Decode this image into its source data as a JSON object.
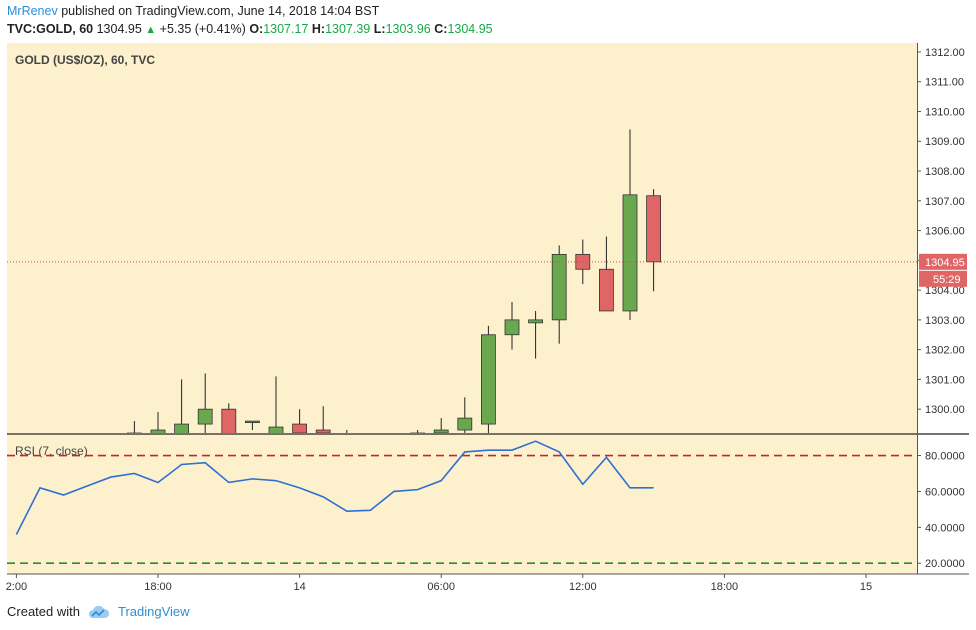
{
  "header": {
    "author": "MrRenev",
    "published_text": "published on TradingView.com, June 14, 2018 14:04 BST"
  },
  "ticker": {
    "symbol": "TVC:GOLD, 60",
    "last": "1304.95",
    "change": "+5.35 (+0.41%)",
    "open_label": "O:",
    "open": "1307.17",
    "high_label": "H:",
    "high": "1307.39",
    "low_label": "L:",
    "low": "1303.96",
    "close_label": "C:",
    "close": "1304.95"
  },
  "footer": {
    "created_with": "Created with",
    "brand": "TradingView"
  },
  "colors": {
    "pane_bg": "#fdf1cd",
    "up": "#6aa84f",
    "down": "#e06666",
    "rsi_line": "#2e6fd1",
    "rsi_upper": "#cc2222",
    "rsi_lower": "#2e8b2e",
    "price_line": "#c94b4b",
    "price_tag": "#e06666"
  },
  "chart_data": [
    {
      "type": "candlestick",
      "title": "GOLD (US$/OZ), 60, TVC",
      "ylim": [
        1299.2,
        1312.3
      ],
      "y_ticks": [
        "1312.00",
        "1311.00",
        "1310.00",
        "1309.00",
        "1308.00",
        "1307.00",
        "1306.00",
        "1305.00",
        "1304.00",
        "1303.00",
        "1302.00",
        "1301.00",
        "1300.00"
      ],
      "last_price_label": "1304.95",
      "countdown_label": "55:29",
      "last_price": 1304.95,
      "candles": [
        {
          "x": -2,
          "o": 1299.0,
          "h": 1299.1,
          "l": 1298.7,
          "c": 1298.9
        },
        {
          "x": -1,
          "o": 1299.2,
          "h": 1299.6,
          "l": 1298.9,
          "c": 1299.1
        },
        {
          "x": 0,
          "o": 1299.1,
          "h": 1299.9,
          "l": 1298.9,
          "c": 1299.3
        },
        {
          "x": 1,
          "o": 1299.1,
          "h": 1301.0,
          "l": 1298.8,
          "c": 1299.5
        },
        {
          "x": 2,
          "o": 1299.5,
          "h": 1301.2,
          "l": 1299.2,
          "c": 1300.0
        },
        {
          "x": 3,
          "o": 1300.0,
          "h": 1300.2,
          "l": 1298.9,
          "c": 1299.0
        },
        {
          "x": 4,
          "o": 1299.6,
          "h": 1299.6,
          "l": 1299.3,
          "c": 1299.6
        },
        {
          "x": 5,
          "o": 1299.0,
          "h": 1301.1,
          "l": 1298.8,
          "c": 1299.4
        },
        {
          "x": 6,
          "o": 1299.5,
          "h": 1300.0,
          "l": 1299.0,
          "c": 1299.2
        },
        {
          "x": 7,
          "o": 1299.3,
          "h": 1300.1,
          "l": 1298.9,
          "c": 1299.2
        },
        {
          "x": 8,
          "o": 1299.0,
          "h": 1299.3,
          "l": 1298.6,
          "c": 1298.9
        },
        {
          "x": 9,
          "o": 1298.7,
          "h": 1298.9,
          "l": 1298.3,
          "c": 1298.5
        },
        {
          "x": 10,
          "o": 1298.7,
          "h": 1298.9,
          "l": 1298.5,
          "c": 1298.6
        },
        {
          "x": 11,
          "o": 1299.0,
          "h": 1299.3,
          "l": 1298.8,
          "c": 1299.2
        },
        {
          "x": 12,
          "o": 1299.2,
          "h": 1299.7,
          "l": 1299.0,
          "c": 1299.3
        },
        {
          "x": 13,
          "o": 1299.3,
          "h": 1300.4,
          "l": 1299.1,
          "c": 1299.7
        },
        {
          "x": 14,
          "o": 1299.5,
          "h": 1302.8,
          "l": 1299.2,
          "c": 1302.5
        },
        {
          "x": 15,
          "o": 1302.5,
          "h": 1303.6,
          "l": 1302.0,
          "c": 1303.0
        },
        {
          "x": 16,
          "o": 1302.9,
          "h": 1303.3,
          "l": 1301.7,
          "c": 1303.0
        },
        {
          "x": 17,
          "o": 1303.0,
          "h": 1305.5,
          "l": 1302.2,
          "c": 1305.2
        },
        {
          "x": 18,
          "o": 1305.2,
          "h": 1305.7,
          "l": 1304.2,
          "c": 1304.7
        },
        {
          "x": 19,
          "o": 1304.7,
          "h": 1305.8,
          "l": 1303.3,
          "c": 1303.3
        },
        {
          "x": 20,
          "o": 1303.3,
          "h": 1309.4,
          "l": 1303.0,
          "c": 1307.2
        },
        {
          "x": 21,
          "o": 1307.17,
          "h": 1307.39,
          "l": 1303.96,
          "c": 1304.95
        }
      ]
    },
    {
      "type": "line",
      "title": "RSI (7, close)",
      "ylim": [
        14,
        92
      ],
      "y_ticks": [
        "80.0000",
        "60.0000",
        "40.0000",
        "20.0000"
      ],
      "levels": [
        80,
        20
      ],
      "x": [
        -6,
        -5,
        -4,
        -3,
        -2,
        -1,
        0,
        1,
        2,
        3,
        4,
        5,
        6,
        7,
        8,
        9,
        10,
        11,
        12,
        13,
        14,
        15,
        16,
        17,
        18,
        19,
        20,
        21
      ],
      "values": [
        36,
        62,
        58,
        63,
        68,
        70,
        65,
        75,
        76,
        65,
        67,
        66,
        62,
        57,
        49,
        49.5,
        60,
        61,
        66,
        82,
        83,
        83,
        88,
        82,
        64,
        79,
        62,
        62
      ],
      "drawn_until": 21
    }
  ],
  "x_axis": {
    "ticks": [
      {
        "x": -6,
        "label": "2:00"
      },
      {
        "x": 0,
        "label": "18:00"
      },
      {
        "x": 6,
        "label": "14"
      },
      {
        "x": 12,
        "label": "06:00"
      },
      {
        "x": 18,
        "label": "12:00"
      },
      {
        "x": 24,
        "label": "18:00"
      },
      {
        "x": 30,
        "label": "15"
      }
    ]
  }
}
